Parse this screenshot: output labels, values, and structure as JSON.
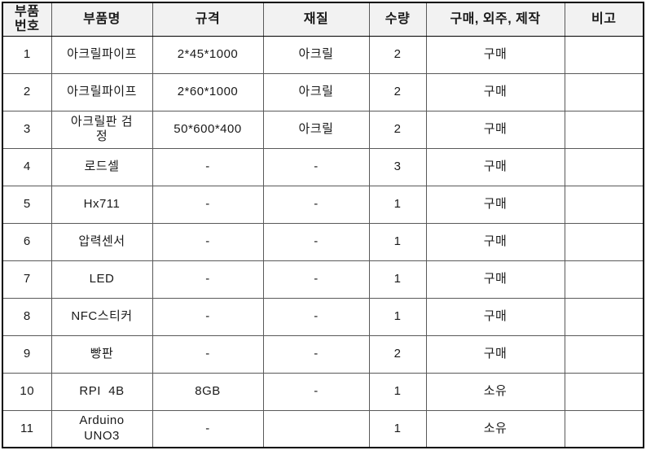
{
  "table": {
    "columns": [
      {
        "key": "no",
        "label": "부품\n번호"
      },
      {
        "key": "name",
        "label": "부품명"
      },
      {
        "key": "spec",
        "label": "규격"
      },
      {
        "key": "material",
        "label": "재질"
      },
      {
        "key": "qty",
        "label": "수량"
      },
      {
        "key": "source",
        "label": "구매, 외주, 제작"
      },
      {
        "key": "note",
        "label": "비고"
      }
    ],
    "rows": [
      {
        "no": "1",
        "name": "아크릴파이프",
        "spec": "2*45*1000",
        "material": "아크릴",
        "qty": "2",
        "source": "구매",
        "note": ""
      },
      {
        "no": "2",
        "name": "아크릴파이프",
        "spec": "2*60*1000",
        "material": "아크릴",
        "qty": "2",
        "source": "구매",
        "note": ""
      },
      {
        "no": "3",
        "name": "아크릴판 검\n정",
        "spec": "50*600*400",
        "material": "아크릴",
        "qty": "2",
        "source": "구매",
        "note": ""
      },
      {
        "no": "4",
        "name": "로드셀",
        "spec": "-",
        "material": "-",
        "qty": "3",
        "source": "구매",
        "note": ""
      },
      {
        "no": "5",
        "name": "Hx711",
        "spec": "-",
        "material": "-",
        "qty": "1",
        "source": "구매",
        "note": ""
      },
      {
        "no": "6",
        "name": "압력센서",
        "spec": "-",
        "material": "-",
        "qty": "1",
        "source": "구매",
        "note": ""
      },
      {
        "no": "7",
        "name": "LED",
        "spec": "-",
        "material": "-",
        "qty": "1",
        "source": "구매",
        "note": ""
      },
      {
        "no": "8",
        "name": "NFC스티커",
        "spec": "-",
        "material": "-",
        "qty": "1",
        "source": "구매",
        "note": ""
      },
      {
        "no": "9",
        "name": "빵판",
        "spec": "-",
        "material": "-",
        "qty": "2",
        "source": "구매",
        "note": ""
      },
      {
        "no": "10",
        "name": "RPI  4B",
        "spec": "8GB",
        "material": "-",
        "qty": "1",
        "source": "소유",
        "note": ""
      },
      {
        "no": "11",
        "name": "Arduino\nUNO3",
        "spec": "-",
        "material": "",
        "qty": "1",
        "source": "소유",
        "note": ""
      }
    ],
    "style": {
      "header_background": "#f2f2f2",
      "inner_border_color": "#595959",
      "outer_border_color": "#000000",
      "text_color": "#1a1a1a"
    }
  }
}
